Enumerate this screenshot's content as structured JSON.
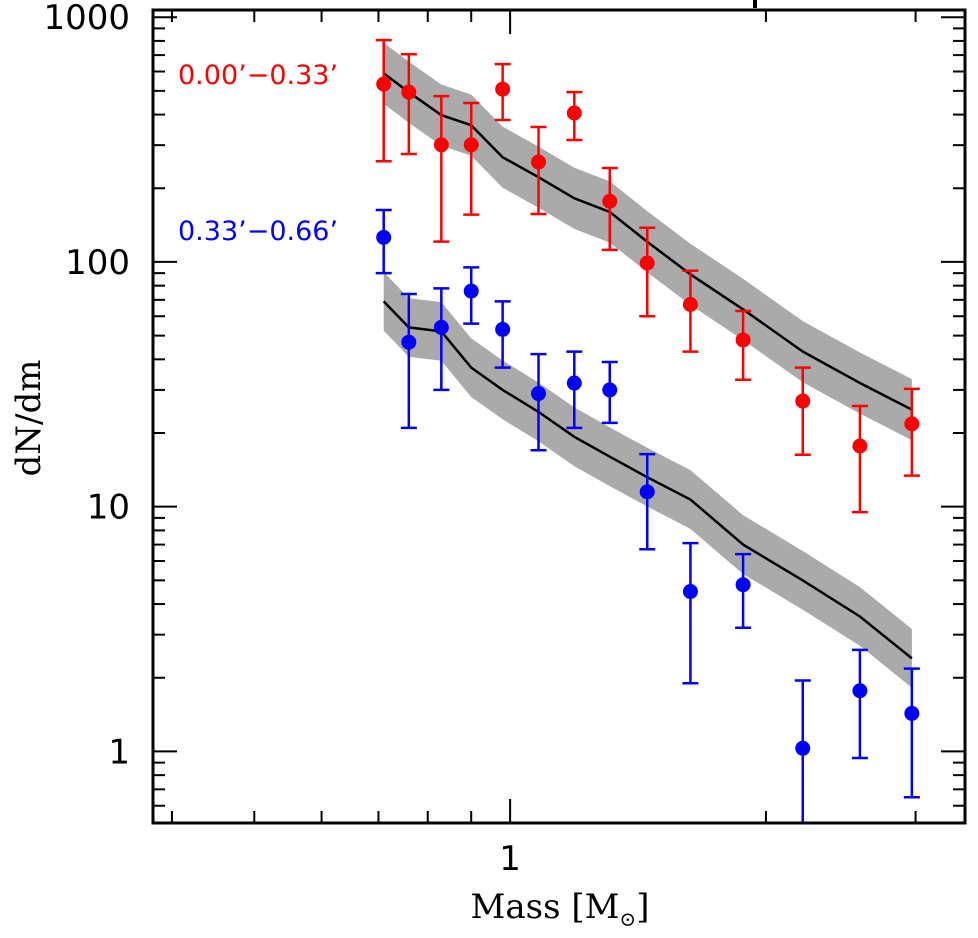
{
  "chart_data": {
    "type": "scatter",
    "title": "",
    "xlabel": "Mass [M⊙]",
    "xlabel_main": "Mass [M",
    "xlabel_sub": "⊙",
    "xlabel_close": "]",
    "ylabel": "dN/dm",
    "xscale": "log",
    "yscale": "log",
    "xlim": [
      0.38,
      3.43
    ],
    "ylim": [
      0.51,
      1070
    ],
    "grid": false,
    "x_major_ticks": [
      {
        "value": 1,
        "label": "1"
      }
    ],
    "x_minor_ticks": [
      0.4,
      0.5,
      0.6,
      0.7,
      0.8,
      0.9,
      2,
      3
    ],
    "y_major_ticks": [
      {
        "value": 1,
        "label": "1"
      },
      {
        "value": 10,
        "label": "10"
      },
      {
        "value": 100,
        "label": "100"
      },
      {
        "value": 1000,
        "label": "1000"
      }
    ],
    "legend_placement": "top-left",
    "x": [
      0.71,
      0.76,
      0.83,
      0.9,
      0.98,
      1.08,
      1.19,
      1.31,
      1.45,
      1.63,
      1.88,
      2.21,
      2.58,
      2.97
    ],
    "series": [
      {
        "name": "0.00’−0.33’",
        "color": "#ff0000",
        "values": [
          533,
          494,
          301,
          301,
          508,
          256,
          406,
          177,
          99,
          67,
          48,
          27,
          17.7,
          21.8
        ],
        "err_high": [
          806,
          706,
          476,
          446,
          643,
          356,
          494,
          242,
          138,
          92,
          63,
          37,
          25.8,
          30.3
        ],
        "err_low": [
          258,
          276,
          121,
          156,
          380,
          157,
          315,
          112,
          60,
          43,
          33,
          16.3,
          9.5,
          13.4
        ],
        "model": [
          590,
          494,
          398,
          362,
          268,
          222,
          182,
          160,
          121,
          89,
          64,
          43,
          32,
          24.9
        ],
        "model_band_dex": 0.125
      },
      {
        "name": "0.33’−0.66’",
        "color": "#0000ff",
        "values": [
          126,
          47,
          54,
          76,
          53,
          29,
          32,
          30,
          11.5,
          4.5,
          4.8,
          1.03,
          1.77,
          1.43
        ],
        "err_high": [
          163,
          74,
          78,
          95,
          69,
          42,
          43,
          39,
          16.4,
          7.1,
          6.4,
          1.95,
          2.6,
          2.18
        ],
        "err_low": [
          90,
          21,
          30,
          56,
          37,
          17,
          21,
          22,
          6.7,
          1.9,
          3.2,
          0.4,
          0.94,
          0.65
        ],
        "model": [
          69,
          54,
          52,
          37,
          30,
          24.4,
          19.3,
          16,
          13.2,
          10.7,
          7.0,
          5.0,
          3.56,
          2.4
        ],
        "model_band_dex": 0.12
      }
    ],
    "model_line_color": "#000000",
    "model_band_color": "#aaaaaa"
  }
}
